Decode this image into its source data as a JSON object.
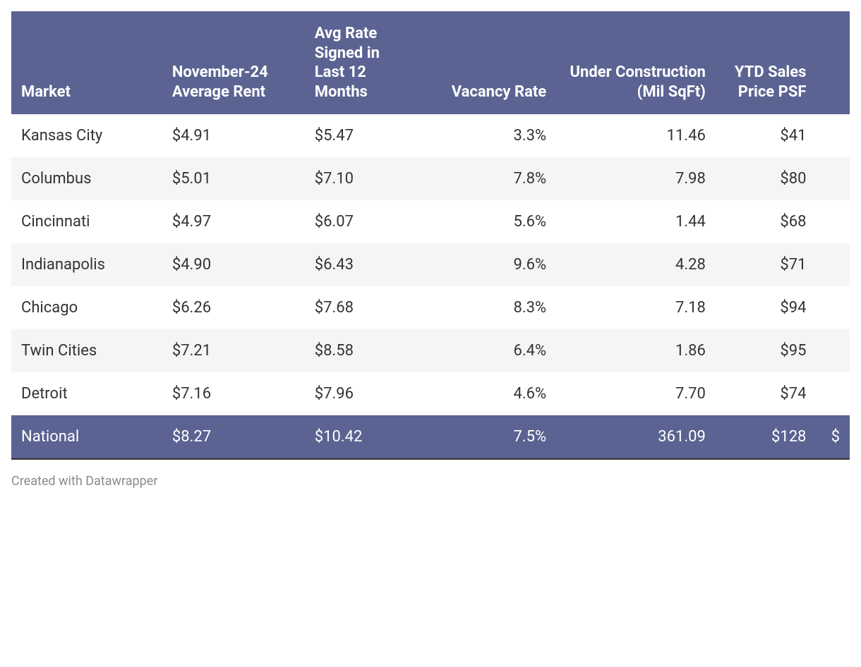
{
  "table": {
    "type": "table",
    "header_bg": "#5b6392",
    "header_text_color": "#ffffff",
    "row_bg_even": "#ffffff",
    "row_bg_odd": "#f5f5f5",
    "total_row_bg": "#5b6392",
    "total_row_text_color": "#ffffff",
    "body_text_color": "#333333",
    "font_size_header": 22,
    "font_size_body": 22,
    "bottom_border_color": "#333333",
    "columns": [
      {
        "label": "Market",
        "align": "left",
        "width_pct": 18
      },
      {
        "label": "November-24 Average Rent",
        "align": "left",
        "width_pct": 17
      },
      {
        "label": "Avg Rate Signed in Last 12 Months",
        "align": "left",
        "width_pct": 14
      },
      {
        "label": "Vacancy Rate",
        "align": "right",
        "width_pct": 16
      },
      {
        "label": "Under Construction (Mil SqFt)",
        "align": "right",
        "width_pct": 19
      },
      {
        "label": "YTD Sales Price PSF",
        "align": "right",
        "width_pct": 12
      },
      {
        "label": "",
        "align": "right",
        "width_pct": 4
      }
    ],
    "rows": [
      {
        "cells": [
          "Kansas City",
          "$4.91",
          "$5.47",
          "3.3%",
          "11.46",
          "$41",
          ""
        ],
        "total": false
      },
      {
        "cells": [
          "Columbus",
          "$5.01",
          "$7.10",
          "7.8%",
          "7.98",
          "$80",
          ""
        ],
        "total": false
      },
      {
        "cells": [
          "Cincinnati",
          "$4.97",
          "$6.07",
          "5.6%",
          "1.44",
          "$68",
          ""
        ],
        "total": false
      },
      {
        "cells": [
          "Indianapolis",
          "$4.90",
          "$6.43",
          "9.6%",
          "4.28",
          "$71",
          ""
        ],
        "total": false
      },
      {
        "cells": [
          "Chicago",
          "$6.26",
          "$7.68",
          "8.3%",
          "7.18",
          "$94",
          ""
        ],
        "total": false
      },
      {
        "cells": [
          "Twin Cities",
          "$7.21",
          "$8.58",
          "6.4%",
          "1.86",
          "$95",
          ""
        ],
        "total": false
      },
      {
        "cells": [
          "Detroit",
          "$7.16",
          "$7.96",
          "4.6%",
          "7.70",
          "$74",
          ""
        ],
        "total": false
      },
      {
        "cells": [
          "National",
          "$8.27",
          "$10.42",
          "7.5%",
          "361.09",
          "$128",
          "$"
        ],
        "total": true
      }
    ]
  },
  "attribution": "Created with Datawrapper"
}
